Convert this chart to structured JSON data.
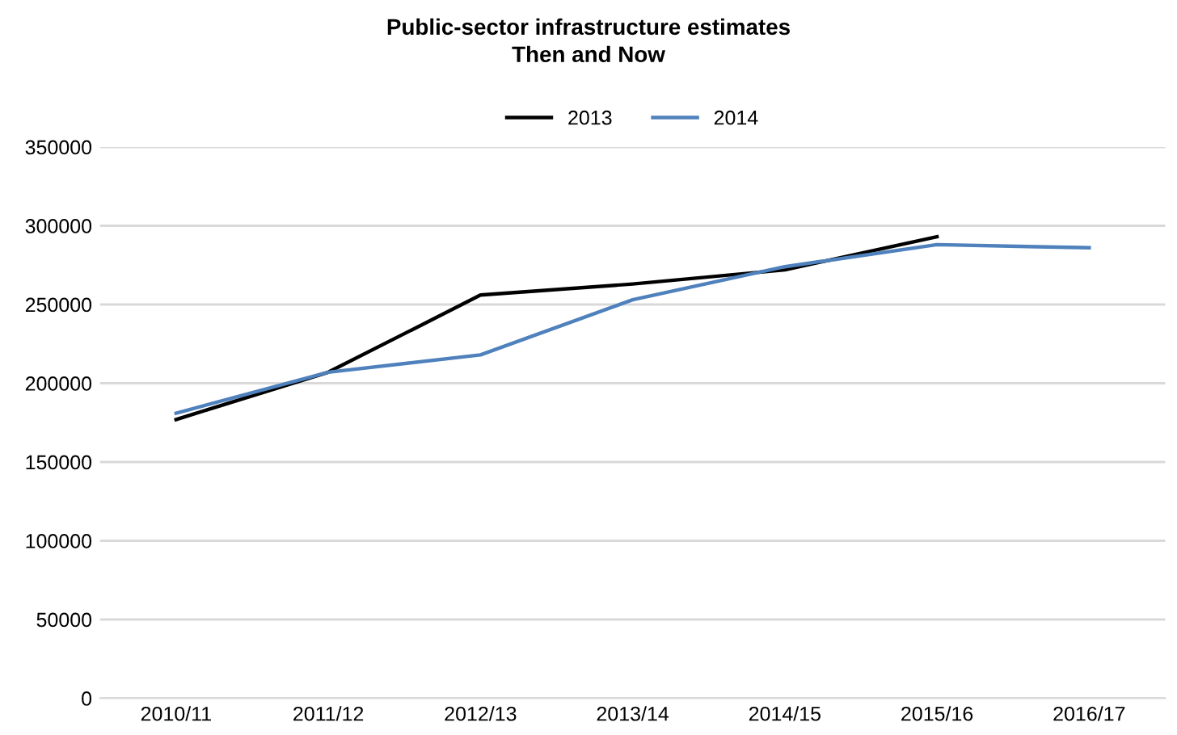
{
  "chart_data": {
    "type": "line",
    "title": "Public-sector infrastructure estimates\nThen and Now",
    "categories": [
      "2010/11",
      "2011/12",
      "2012/13",
      "2013/14",
      "2014/15",
      "2015/16",
      "2016/17"
    ],
    "series": [
      {
        "name": "2013",
        "color": "#000000",
        "values": [
          177000,
          207000,
          256000,
          263000,
          272000,
          293000,
          null
        ]
      },
      {
        "name": "2014",
        "color": "#4f81bd",
        "values": [
          181000,
          207000,
          218000,
          253000,
          274000,
          288000,
          286000
        ]
      }
    ],
    "ylim": [
      0,
      350000
    ],
    "yticks": [
      0,
      50000,
      100000,
      150000,
      200000,
      250000,
      300000,
      350000
    ],
    "grid": "y",
    "legend": "top",
    "marker": "none",
    "line_style": "solid"
  }
}
